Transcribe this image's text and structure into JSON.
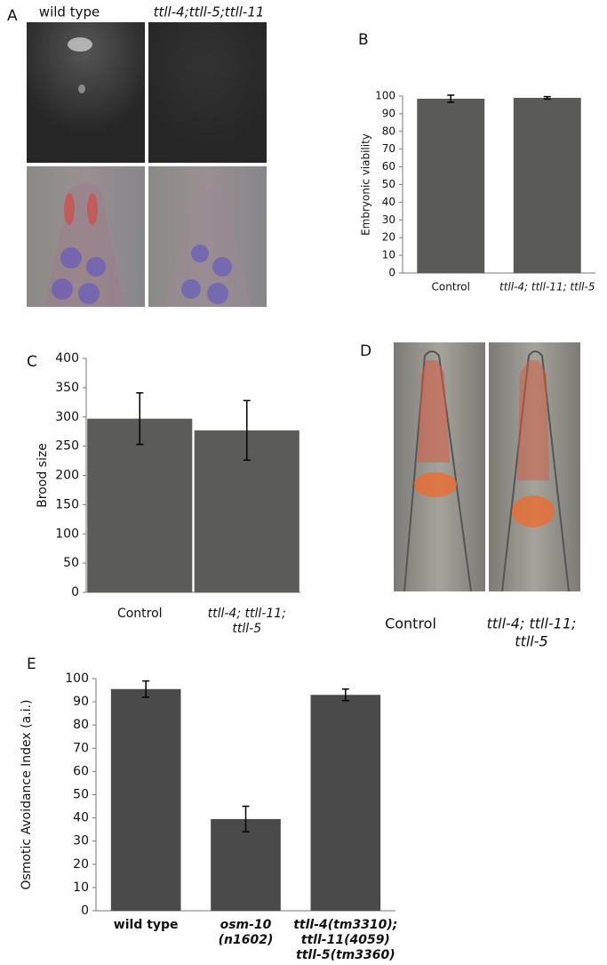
{
  "images": {
    "A": {
      "label": "A",
      "columns": [
        "wild type",
        "ttll-4;ttll-5;ttll-11"
      ]
    },
    "D": {
      "label": "D",
      "columns": [
        [
          "Control"
        ],
        [
          "ttll-4; ttll-11;",
          "ttll-5"
        ]
      ]
    }
  },
  "chart_data": [
    {
      "type": "bar",
      "panel_label": "B",
      "y_label": "Embryonic viability",
      "categories": [
        [
          "Control"
        ],
        [
          "ttll-4; ttll-11; ttll-5"
        ]
      ],
      "values": [
        98.5,
        99
      ],
      "errors": [
        2,
        0.7
      ],
      "color": "#5a5a58",
      "ylim": [
        0,
        100
      ],
      "yticks": [
        0,
        10,
        20,
        30,
        40,
        50,
        60,
        70,
        80,
        90,
        100
      ]
    },
    {
      "type": "bar",
      "panel_label": "C",
      "y_label": "Brood size",
      "categories": [
        [
          "Control"
        ],
        [
          "ttll-4; ttll-11;",
          "ttll-5"
        ]
      ],
      "values": [
        297,
        277
      ],
      "errors": [
        44,
        51
      ],
      "color": "#5b5b59",
      "ylim": [
        0,
        400
      ],
      "yticks": [
        0,
        50,
        100,
        150,
        200,
        250,
        300,
        350,
        400
      ]
    },
    {
      "type": "bar",
      "panel_label": "E",
      "y_label": "Osmotic Avoidance Index (a.i.)",
      "categories": [
        [
          "wild type"
        ],
        [
          "osm-10",
          "(n1602)"
        ],
        [
          "ttll-4(tm3310);",
          "ttll-11(4059)",
          "ttll-5(tm3360)"
        ]
      ],
      "values": [
        95.5,
        39.5,
        93
      ],
      "errors": [
        3.5,
        5.5,
        2.5
      ],
      "color": "#4a4a4a",
      "ylim": [
        0,
        100
      ],
      "yticks": [
        0,
        10,
        20,
        30,
        40,
        50,
        60,
        70,
        80,
        90,
        100
      ]
    }
  ]
}
